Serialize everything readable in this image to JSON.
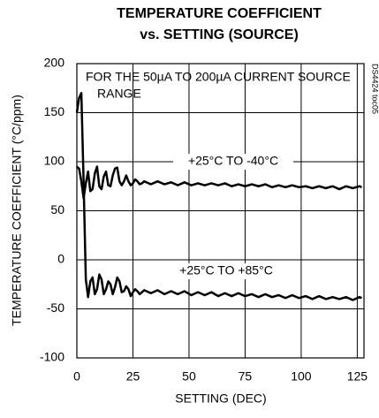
{
  "chart_data": {
    "type": "line",
    "title": "TEMPERATURE COEFFICIENT",
    "subtitle": "vs. SETTING (SOURCE)",
    "x_label": "SETTING (DEC)",
    "y_label": "TEMPERATURE COEFFICIENT (°C/ppm)",
    "annotations": [
      "FOR THE 50µA TO 200µA CURRENT SOURCE",
      "RANGE",
      "+25°C TO -40°C",
      "+25°C TO +85°C",
      "DS4424 toc05"
    ],
    "x": [
      0,
      1,
      2,
      3,
      4,
      5,
      6,
      7,
      8,
      9,
      10,
      11,
      12,
      13,
      14,
      15,
      16,
      17,
      18,
      19,
      20,
      21,
      22,
      23,
      24,
      25,
      26,
      27,
      28,
      29,
      30,
      33,
      36,
      39,
      42,
      45,
      48,
      51,
      54,
      57,
      60,
      63,
      66,
      69,
      72,
      75,
      78,
      81,
      84,
      87,
      90,
      93,
      96,
      99,
      102,
      105,
      108,
      111,
      114,
      117,
      120,
      123,
      126,
      127
    ],
    "series": [
      {
        "name": "+25°C TO -40°C",
        "color": "#000000",
        "values": [
          95,
          93,
          80,
          63,
          78,
          90,
          70,
          72,
          88,
          95,
          75,
          72,
          85,
          90,
          76,
          75,
          86,
          93,
          94,
          80,
          76,
          80,
          86,
          80,
          76,
          78,
          82,
          80,
          77,
          78,
          80,
          77,
          80,
          77,
          79,
          76,
          79,
          76,
          78,
          76,
          78,
          76,
          78,
          75,
          77,
          75,
          77,
          75,
          77,
          74,
          76,
          74,
          76,
          74,
          75,
          73,
          75,
          73,
          75,
          72,
          75,
          73,
          75,
          74
        ]
      },
      {
        "name": "+25°C TO +85°C",
        "color": "#000000",
        "values": [
          150,
          165,
          170,
          80,
          -20,
          -38,
          -22,
          -18,
          -35,
          -30,
          -15,
          -20,
          -35,
          -30,
          -22,
          -25,
          -35,
          -28,
          -18,
          -22,
          -33,
          -32,
          -27,
          -30,
          -37,
          -33,
          -30,
          -32,
          -35,
          -33,
          -31,
          -34,
          -31,
          -35,
          -32,
          -35,
          -32,
          -36,
          -33,
          -36,
          -33,
          -37,
          -34,
          -37,
          -34,
          -37,
          -35,
          -38,
          -35,
          -38,
          -36,
          -39,
          -36,
          -39,
          -37,
          -40,
          -37,
          -40,
          -38,
          -40,
          -38,
          -41,
          -38,
          -39
        ]
      }
    ],
    "xlim": [
      0,
      128
    ],
    "ylim": [
      -100,
      200
    ],
    "xticks": [
      0,
      25,
      50,
      75,
      100,
      125
    ],
    "yticks": [
      -100,
      -50,
      0,
      50,
      100,
      150,
      200
    ],
    "grid": true
  }
}
